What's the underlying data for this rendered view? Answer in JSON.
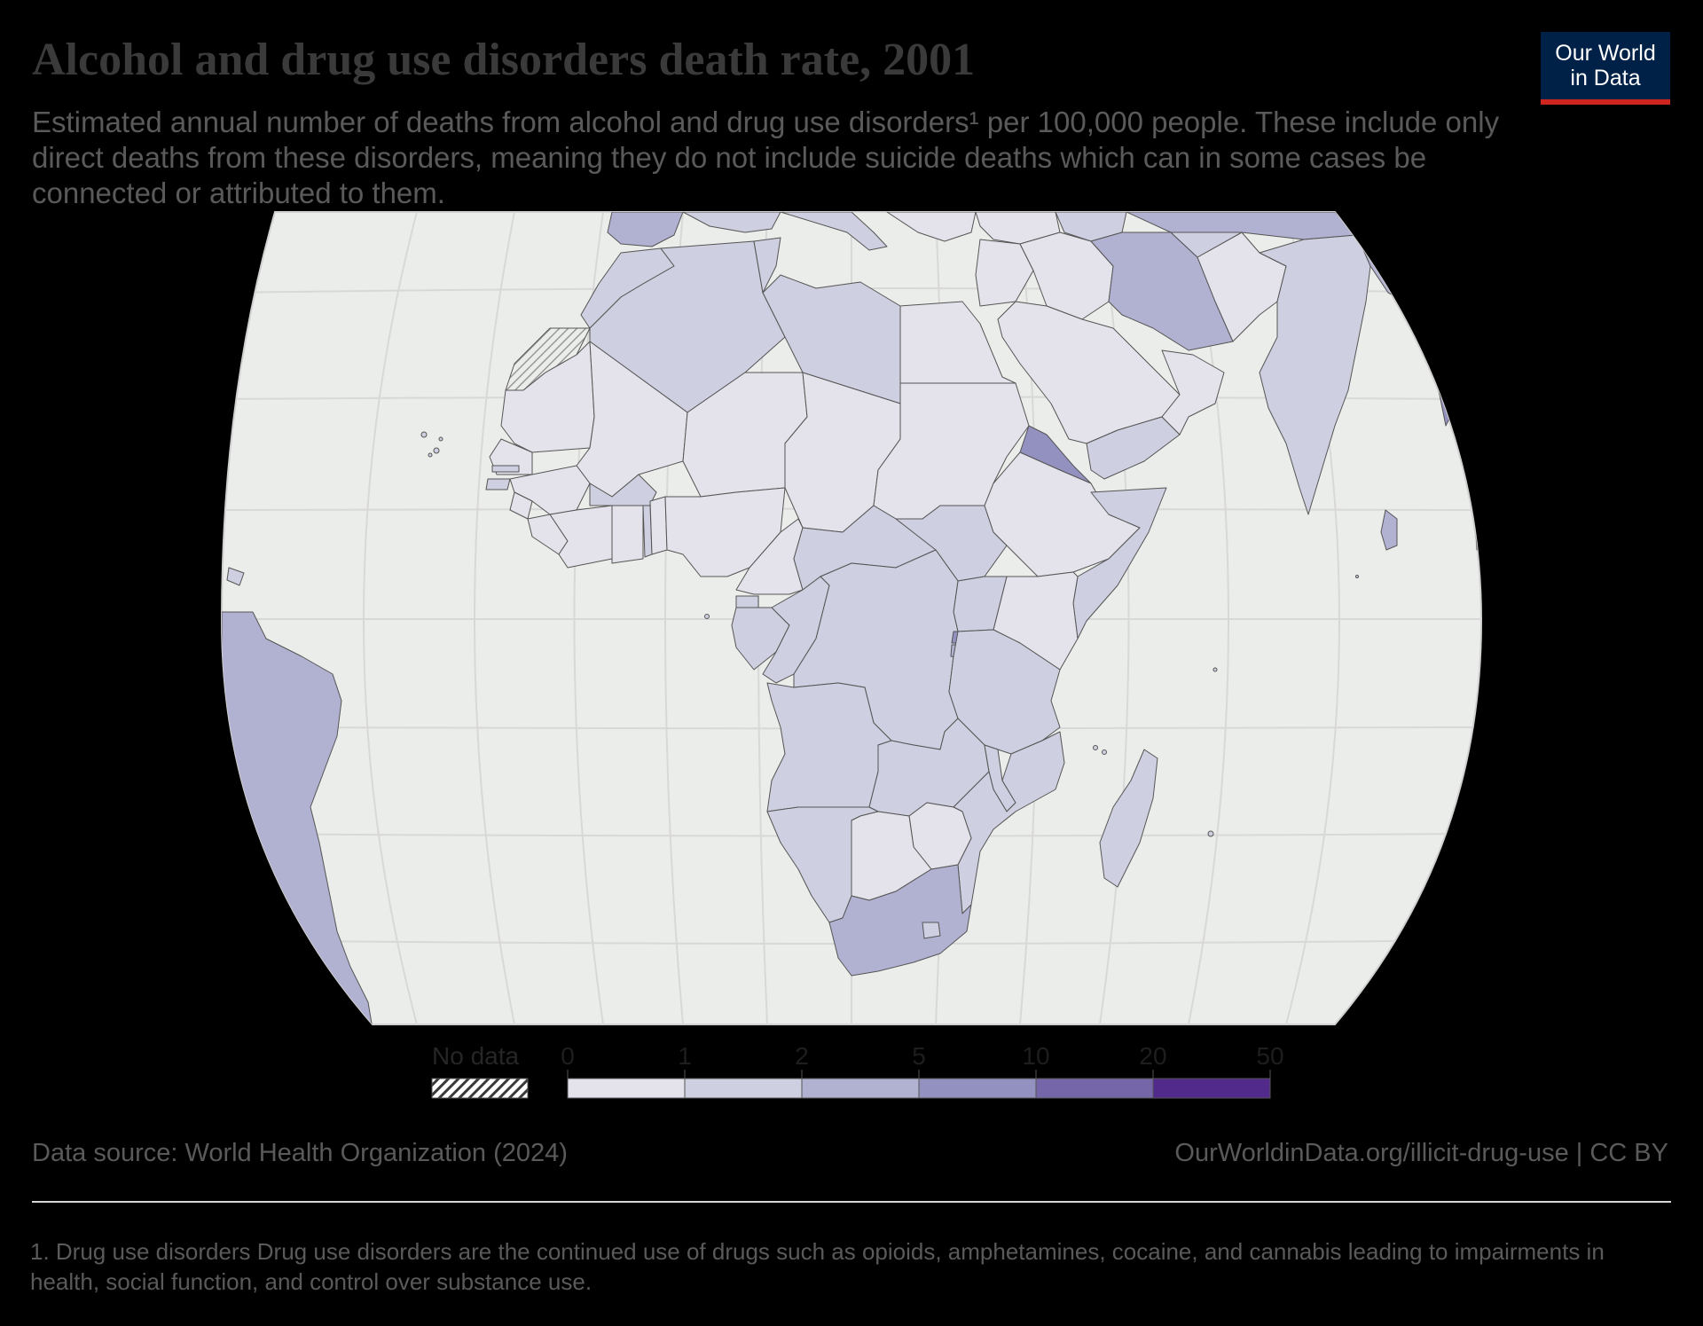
{
  "header": {
    "title": "Alcohol and drug use disorders death rate, 2001",
    "subtitle": "Estimated annual number of deaths from alcohol and drug use disorders¹ per 100,000 people. These include only direct deaths from these disorders, meaning they do not include suicide deaths which can in some cases be connected or attributed to them."
  },
  "logo": {
    "line1": "Our World",
    "line2": "in Data"
  },
  "map": {
    "region": "Africa and surrounding areas",
    "colors": {
      "ocean": "#ebedea",
      "graticule": "#d9d9d9",
      "border": "#555555",
      "bin_0_1": "#e4e3eb",
      "bin_1_2": "#cecfe0",
      "bin_2_5": "#b1b1d2",
      "bin_5_10": "#9391c0",
      "bin_10_20": "#7566a9",
      "bin_20_50": "#522a8b"
    }
  },
  "legend": {
    "no_data_label": "No data",
    "ticks": [
      "0",
      "1",
      "2",
      "5",
      "10",
      "20",
      "50"
    ],
    "bins": [
      {
        "from": "0",
        "to": "1",
        "color": "#e4e3eb"
      },
      {
        "from": "1",
        "to": "2",
        "color": "#cecfe0"
      },
      {
        "from": "2",
        "to": "5",
        "color": "#b1b1d2"
      },
      {
        "from": "5",
        "to": "10",
        "color": "#9391c0"
      },
      {
        "from": "10",
        "to": "20",
        "color": "#7566a9"
      },
      {
        "from": "20",
        "to": "50",
        "color": "#522a8b"
      }
    ]
  },
  "footer": {
    "source": "Data source: World Health Organization (2024)",
    "url": "OurWorldinData.org/illicit-drug-use | CC BY",
    "footnote": "1. Drug use disorders Drug use disorders are the continued use of drugs such as opioids, amphetamines, cocaine, and cannabis leading to impairments in health, social function, and control over substance use."
  }
}
